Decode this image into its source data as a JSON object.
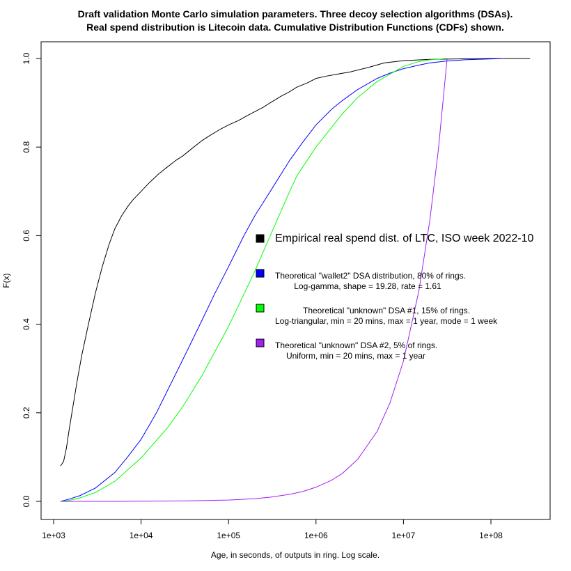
{
  "chart_data": {
    "type": "line",
    "title": [
      "Draft validation Monte Carlo simulation parameters. Three decoy selection algorithms (DSAs).",
      "Real spend distribution is Litecoin data. Cumulative Distribution Functions (CDFs) shown."
    ],
    "xlabel": "Age, in seconds, of outputs in ring. Log scale.",
    "ylabel": "F(x)",
    "x_scale": "log10",
    "xlim": [
      1000,
      450000000
    ],
    "ylim": [
      -0.03,
      1.03
    ],
    "x_ticks": [
      1000,
      10000,
      100000,
      1000000,
      10000000,
      100000000
    ],
    "x_tick_labels": [
      "1e+03",
      "1e+04",
      "1e+05",
      "1e+06",
      "1e+07",
      "1e+08"
    ],
    "y_ticks": [
      0.0,
      0.2,
      0.4,
      0.6,
      0.8,
      1.0
    ],
    "y_tick_labels": [
      "0.0",
      "0.2",
      "0.4",
      "0.6",
      "0.8",
      "1.0"
    ],
    "grid": false,
    "legend_position": "center-right",
    "series": [
      {
        "key": "empirical",
        "color": "#000000",
        "legend_lines": [
          "Empirical real spend dist. of LTC, ISO week 2022-10"
        ],
        "legend_size": "large",
        "x": [
          1200,
          1300,
          1400,
          1500,
          1650,
          1850,
          2100,
          2500,
          3000,
          3600,
          4300,
          5000,
          6000,
          7000,
          8000,
          10000,
          12500,
          16000,
          20000,
          25000,
          30000,
          40000,
          50000,
          60000,
          80000,
          100000,
          130000,
          160000,
          200000,
          250000,
          300000,
          400000,
          500000,
          600000,
          800000,
          1000000,
          1300000,
          1800000,
          2500000,
          4000000,
          6000000,
          10000000,
          20000000,
          40000000,
          100000000,
          180000000,
          280000000
        ],
        "y": [
          0.08,
          0.09,
          0.12,
          0.16,
          0.21,
          0.27,
          0.33,
          0.4,
          0.47,
          0.53,
          0.58,
          0.615,
          0.645,
          0.665,
          0.68,
          0.7,
          0.72,
          0.74,
          0.755,
          0.77,
          0.78,
          0.8,
          0.815,
          0.825,
          0.84,
          0.85,
          0.86,
          0.87,
          0.88,
          0.89,
          0.9,
          0.915,
          0.925,
          0.935,
          0.945,
          0.955,
          0.96,
          0.965,
          0.97,
          0.98,
          0.99,
          0.995,
          0.998,
          0.999,
          1.0,
          1.0,
          1.0
        ]
      },
      {
        "key": "wallet2",
        "color": "#0000ff",
        "legend_lines": [
          "Theoretical \"wallet2\" DSA distribution, 80% of rings.",
          "Log-gamma, shape = 19.28, rate = 1.61"
        ],
        "legend_size": "small",
        "x": [
          1200,
          1500,
          2000,
          3000,
          5000,
          7000,
          10000,
          15000,
          20000,
          30000,
          50000,
          70000,
          100000,
          150000,
          200000,
          300000,
          500000,
          700000,
          1000000,
          1500000,
          2000000,
          3000000,
          5000000,
          7000000,
          10000000,
          15000000,
          20000000,
          30000000,
          50000000,
          70000000,
          100000000,
          140000000
        ],
        "y": [
          0.0,
          0.005,
          0.013,
          0.03,
          0.065,
          0.1,
          0.14,
          0.2,
          0.25,
          0.32,
          0.41,
          0.47,
          0.53,
          0.6,
          0.645,
          0.7,
          0.77,
          0.81,
          0.85,
          0.885,
          0.905,
          0.93,
          0.955,
          0.967,
          0.977,
          0.985,
          0.99,
          0.994,
          0.997,
          0.998,
          0.999,
          1.0
        ]
      },
      {
        "key": "dsa1",
        "color": "#00ff00",
        "legend_lines": [
          "Theoretical \"unknown\" DSA #1, 15% of rings.",
          "Log-triangular, min = 20 mins, max = 1 year, mode = 1 week"
        ],
        "legend_size": "small",
        "x": [
          1200,
          1500,
          2000,
          3000,
          5000,
          10000,
          20000,
          30000,
          50000,
          100000,
          200000,
          300000,
          500000,
          604800,
          1000000,
          2000000,
          3000000,
          5000000,
          10000000,
          15000000,
          20000000,
          31557600
        ],
        "y": [
          0.0,
          0.002,
          0.008,
          0.02,
          0.045,
          0.098,
          0.166,
          0.214,
          0.285,
          0.395,
          0.52,
          0.6,
          0.7,
          0.735,
          0.8,
          0.875,
          0.912,
          0.948,
          0.982,
          0.993,
          0.997,
          1.0
        ]
      },
      {
        "key": "dsa2",
        "color": "#a020f0",
        "legend_lines": [
          "Theoretical \"unknown\" DSA #2, 5% of rings.",
          "Uniform, min =  20 mins, max = 1 year"
        ],
        "legend_size": "small",
        "x": [
          1200,
          2000,
          5000,
          10000,
          30000,
          100000,
          200000,
          300000,
          500000,
          700000,
          1000000,
          1500000,
          2000000,
          3000000,
          5000000,
          7000000,
          10000000,
          15000000,
          20000000,
          25000000,
          31557600
        ],
        "y": [
          0.0,
          0.0,
          0.0001,
          0.0003,
          0.001,
          0.003,
          0.006,
          0.0095,
          0.016,
          0.022,
          0.032,
          0.0475,
          0.063,
          0.095,
          0.158,
          0.222,
          0.317,
          0.475,
          0.634,
          0.792,
          1.0
        ]
      }
    ]
  }
}
